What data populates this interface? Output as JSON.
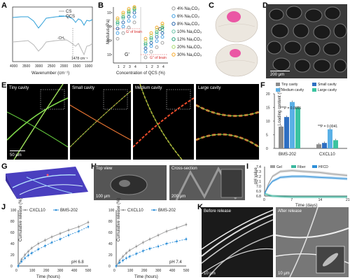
{
  "panel_labels": [
    "A",
    "B",
    "C",
    "D",
    "E",
    "F",
    "G",
    "H",
    "I",
    "J",
    "K"
  ],
  "panelA": {
    "legend": [
      "CS",
      "QCS"
    ],
    "xlabel": "Wavenumber (cm⁻¹)",
    "xticks": [
      "4000",
      "3500",
      "3000",
      "2500",
      "2000",
      "1500",
      "1000"
    ],
    "annot_ch3": "-CH₃",
    "annot_1478": "1478 cm⁻¹",
    "colors": {
      "CS": "#b8b8b8",
      "QCS": "#2e9fd8"
    },
    "chart_data": {
      "type": "line",
      "series": [
        {
          "name": "CS"
        },
        {
          "name": "QCS"
        }
      ],
      "xlim": [
        4000,
        900
      ]
    }
  },
  "panelB": {
    "ylabel": "Modulus (Pa)",
    "xlabel": "Concentration of QCS (%)",
    "xticks": [
      "1",
      "2",
      "3",
      "4",
      "1",
      "2",
      "3",
      "4"
    ],
    "yticks": [
      "10⁴",
      "10³",
      "10²",
      "10¹"
    ],
    "gprime": "G'",
    "gdouble": "G\"",
    "brain1": "G' of brain",
    "brain2": "G\" of brain",
    "legend": [
      {
        "label": "4% Na₂CO₃",
        "color": "#999999"
      },
      {
        "label": "6% Na₂CO₃",
        "color": "#3a9be0"
      },
      {
        "label": "8% Na₂CO₃",
        "color": "#1f5fa8"
      },
      {
        "label": "10% Na₂CO₃",
        "color": "#66c2a5"
      },
      {
        "label": "12% Na₂CO₃",
        "color": "#1b9e77"
      },
      {
        "label": "20% Na₂CO₃",
        "color": "#a6d96a"
      },
      {
        "label": "30% Na₂CO₃",
        "color": "#f6a623"
      }
    ],
    "chart_data": {
      "type": "scatter",
      "groups": [
        {
          "name": "G'",
          "x": [
            1,
            2,
            3,
            4
          ],
          "series": [
            {
              "name": "4% Na₂CO₃",
              "values": [
                200,
                400,
                800,
                1500
              ]
            },
            {
              "name": "6% Na₂CO₃",
              "values": [
                400,
                900,
                1800,
                3000
              ]
            },
            {
              "name": "8% Na₂CO₃",
              "values": [
                700,
                1500,
                3000,
                5000
              ]
            },
            {
              "name": "10% Na₂CO₃",
              "values": [
                1200,
                2500,
                4500,
                7000
              ]
            },
            {
              "name": "12% Na₂CO₃",
              "values": [
                1500,
                3000,
                5500,
                8000
              ]
            },
            {
              "name": "20% Na₂CO₃",
              "values": [
                2000,
                4000,
                6500,
                9000
              ]
            },
            {
              "name": "30% Na₂CO₃",
              "values": [
                2500,
                5000,
                8000,
                10000
              ]
            }
          ]
        },
        {
          "name": "G\"",
          "x": [
            1,
            2,
            3,
            4
          ],
          "series": [
            {
              "name": "4% Na₂CO₃",
              "values": [
                20,
                40,
                70,
                120
              ]
            },
            {
              "name": "6% Na₂CO₃",
              "values": [
                40,
                80,
                150,
                250
              ]
            },
            {
              "name": "8% Na₂CO₃",
              "values": [
                60,
                120,
                250,
                400
              ]
            },
            {
              "name": "10% Na₂CO₃",
              "values": [
                90,
                180,
                350,
                600
              ]
            },
            {
              "name": "12% Na₂CO₃",
              "values": [
                110,
                220,
                450,
                800
              ]
            },
            {
              "name": "20% Na₂CO₃",
              "values": [
                150,
                300,
                600,
                1000
              ]
            },
            {
              "name": "30% Na₂CO₃",
              "values": [
                200,
                400,
                800,
                1300
              ]
            }
          ]
        }
      ],
      "ylabel": "Modulus (Pa)",
      "xlabel": "Concentration of QCS (%)",
      "yscale": "log",
      "ylim": [
        10,
        10000
      ]
    }
  },
  "panelD": {
    "scale": "200 μm"
  },
  "panelE": {
    "titles": [
      "Tiny cavity",
      "Small cavity",
      "Medium cavity",
      "Large cavity"
    ],
    "scale": "50 μm"
  },
  "panelF": {
    "ylabel": "Loading content (%)",
    "categories": [
      "BMS-202",
      "CXCL10"
    ],
    "legend": [
      {
        "label": "Tiny cavity",
        "color": "#8c8c8c"
      },
      {
        "label": "Small cavity",
        "color": "#2e6fc2"
      },
      {
        "label": "Medium cavity",
        "color": "#5ab0e6"
      },
      {
        "label": "Large cavity",
        "color": "#3cc3a0"
      }
    ],
    "p1": "***P = 0.0005",
    "p2": "**P = 0.0041",
    "yticks": [
      "0",
      "5",
      "10",
      "15",
      "20"
    ],
    "chart_data": {
      "type": "bar",
      "categories": [
        "BMS-202",
        "CXCL10"
      ],
      "series": [
        {
          "name": "Tiny cavity",
          "values": [
            8,
            1.5
          ]
        },
        {
          "name": "Small cavity",
          "values": [
            11.5,
            2
          ]
        },
        {
          "name": "Medium cavity",
          "values": [
            17,
            7
          ]
        },
        {
          "name": "Large cavity",
          "values": [
            15,
            3
          ]
        }
      ],
      "ylabel": "Loading content (%)",
      "ylim": [
        0,
        20
      ]
    }
  },
  "panelH": {
    "top": "Top view",
    "cross": "Cross-section",
    "scale1": "100 μm",
    "scale2": "200 μm"
  },
  "panelI": {
    "ylabel": "pH value",
    "xlabel": "Time (days)",
    "legend": [
      {
        "label": "Gel",
        "color": "#a0a0a0"
      },
      {
        "label": "Fiber",
        "color": "#3cb8a0"
      },
      {
        "label": "HFCD",
        "color": "#2e8fd8"
      }
    ],
    "yticks": [
      "7.4",
      "7.3",
      "7.2",
      "7.1",
      "7.0",
      "6.9",
      "6.8"
    ],
    "xticks": [
      "0",
      "7",
      "14",
      "21"
    ],
    "chart_data": {
      "type": "line",
      "x": [
        0,
        1,
        2,
        4,
        7,
        10,
        14,
        17,
        21
      ],
      "series": [
        {
          "name": "Gel",
          "values": [
            6.85,
            7.05,
            7.2,
            7.3,
            7.32,
            7.3,
            7.28,
            7.25,
            7.22
          ]
        },
        {
          "name": "Fiber",
          "values": [
            6.85,
            6.82,
            6.8,
            6.79,
            6.78,
            6.78,
            6.78,
            6.78,
            6.78
          ]
        },
        {
          "name": "HFCD",
          "values": [
            6.85,
            7.0,
            7.1,
            7.18,
            7.2,
            7.2,
            7.18,
            7.17,
            7.15
          ]
        }
      ],
      "xlabel": "Time (days)",
      "ylabel": "pH value",
      "ylim": [
        6.8,
        7.4
      ],
      "xlim": [
        0,
        21
      ]
    }
  },
  "panelJ": {
    "charts": [
      {
        "ph": "pH 6.8",
        "legend": [
          "CXCL10",
          "BMS-202"
        ],
        "chart_data": {
          "type": "line",
          "x": [
            0,
            24,
            48,
            72,
            96,
            144,
            192,
            240,
            300,
            360,
            432,
            500
          ],
          "series": [
            {
              "name": "CXCL10",
              "values": [
                0,
                12,
                20,
                26,
                32,
                40,
                46,
                52,
                58,
                64,
                70,
                78
              ]
            },
            {
              "name": "BMS-202",
              "values": [
                0,
                8,
                14,
                19,
                23,
                30,
                36,
                42,
                48,
                55,
                62,
                70
              ]
            }
          ],
          "xlabel": "Time (hours)",
          "ylabel": "Cumulative release (%)",
          "ylim": [
            0,
            100
          ],
          "xlim": [
            0,
            500
          ]
        }
      },
      {
        "ph": "pH 7.4",
        "legend": [
          "CXCL10",
          "BMS-202"
        ],
        "chart_data": {
          "type": "line",
          "x": [
            0,
            24,
            48,
            72,
            96,
            144,
            192,
            240,
            300,
            360,
            432,
            500
          ],
          "series": [
            {
              "name": "CXCL10",
              "values": [
                0,
                10,
                17,
                23,
                28,
                35,
                42,
                48,
                55,
                62,
                68,
                74
              ]
            },
            {
              "name": "BMS-202",
              "values": [
                0,
                6,
                10,
                14,
                17,
                22,
                27,
                31,
                35,
                40,
                44,
                48
              ]
            }
          ],
          "xlabel": "Time (hours)",
          "ylabel": "Cumulative release (%)",
          "ylim": [
            0,
            100
          ],
          "xlim": [
            0,
            500
          ]
        }
      }
    ],
    "xticks": [
      "0",
      "100",
      "200",
      "300",
      "400",
      "500"
    ],
    "yticks": [
      "0",
      "20",
      "40",
      "60",
      "80",
      "100"
    ],
    "colors": {
      "CXCL10": "#999999",
      "BMS-202": "#2e8fd8"
    }
  },
  "panelK": {
    "before": "Before release",
    "after": "After release",
    "scale1": "10 μm",
    "scale2": "10 μm"
  }
}
